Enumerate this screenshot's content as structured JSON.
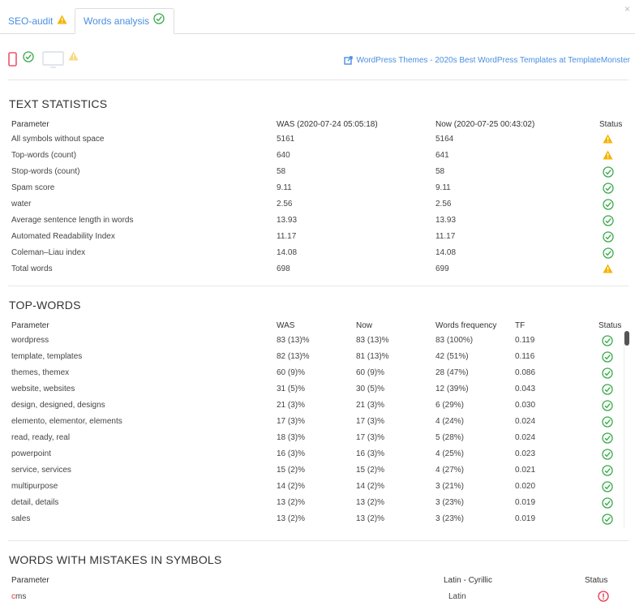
{
  "tabs": [
    {
      "label": "SEO-audit",
      "status": "warning"
    },
    {
      "label": "Words analysis",
      "status": "ok",
      "active": true
    }
  ],
  "close_label": "×",
  "devices": [
    {
      "icon": "mobile-icon",
      "status": "ok",
      "color": "#f0546a"
    },
    {
      "icon": "desktop-icon",
      "status": "warning",
      "color": "#d9dde3"
    }
  ],
  "page_link": "WordPress Themes - 2020s Best WordPress Templates at TemplateMonster",
  "colors": {
    "accent": "#4a8fe0",
    "ok": "#3aa94a",
    "warning": "#f5b400",
    "error": "#e8334a"
  },
  "text_statistics": {
    "title": "TEXT STATISTICS",
    "columns": [
      "Parameter",
      "WAS (2020-07-24 05:05:18)",
      "Now (2020-07-25 00:43:02)",
      "Status"
    ],
    "rows": [
      [
        "All symbols without space",
        "5161",
        "5164",
        "warning"
      ],
      [
        "Top-words (count)",
        "640",
        "641",
        "warning"
      ],
      [
        "Stop-words (count)",
        "58",
        "58",
        "ok"
      ],
      [
        "Spam score",
        "9.11",
        "9.11",
        "ok"
      ],
      [
        "water",
        "2.56",
        "2.56",
        "ok"
      ],
      [
        "Average sentence length in words",
        "13.93",
        "13.93",
        "ok"
      ],
      [
        "Automated Readability Index",
        "11.17",
        "11.17",
        "ok"
      ],
      [
        "Coleman–Liau index",
        "14.08",
        "14.08",
        "ok"
      ],
      [
        "Total words",
        "698",
        "699",
        "warning"
      ]
    ]
  },
  "top_words": {
    "title": "TOP-WORDS",
    "columns": [
      "Parameter",
      "WAS",
      "Now",
      "Words frequency",
      "TF",
      "Status"
    ],
    "rows": [
      [
        "wordpress",
        "83 (13)%",
        "83 (13)%",
        "83 (100%)",
        "0.119",
        "ok"
      ],
      [
        "template, templates",
        "82 (13)%",
        "81 (13)%",
        "42 (51%)",
        "0.116",
        "ok"
      ],
      [
        "themes, themex",
        "60 (9)%",
        "60 (9)%",
        "28 (47%)",
        "0.086",
        "ok"
      ],
      [
        "website, websites",
        "31 (5)%",
        "30 (5)%",
        "12 (39%)",
        "0.043",
        "ok"
      ],
      [
        "design, designed, designs",
        "21 (3)%",
        "21 (3)%",
        "6 (29%)",
        "0.030",
        "ok"
      ],
      [
        "elemento, elementor, elements",
        "17 (3)%",
        "17 (3)%",
        "4 (24%)",
        "0.024",
        "ok"
      ],
      [
        "read, ready, real",
        "18 (3)%",
        "17 (3)%",
        "5 (28%)",
        "0.024",
        "ok"
      ],
      [
        "powerpoint",
        "16 (3)%",
        "16 (3)%",
        "4 (25%)",
        "0.023",
        "ok"
      ],
      [
        "service, services",
        "15 (2)%",
        "15 (2)%",
        "4 (27%)",
        "0.021",
        "ok"
      ],
      [
        "multipurpose",
        "14 (2)%",
        "14 (2)%",
        "3 (21%)",
        "0.020",
        "ok"
      ],
      [
        "detail, details",
        "13 (2)%",
        "13 (2)%",
        "3 (23%)",
        "0.019",
        "ok"
      ],
      [
        "sales",
        "13 (2)%",
        "13 (2)%",
        "3 (23%)",
        "0.019",
        "ok"
      ]
    ]
  },
  "mistakes": {
    "title": "WORDS WITH MISTAKES IN SYMBOLS",
    "columns": [
      "Parameter",
      "Latin - Cyrillic",
      "Status"
    ],
    "rows": [
      {
        "highlight": "c",
        "rest": "ms",
        "alphabet": "Latin",
        "status": "error"
      }
    ]
  }
}
